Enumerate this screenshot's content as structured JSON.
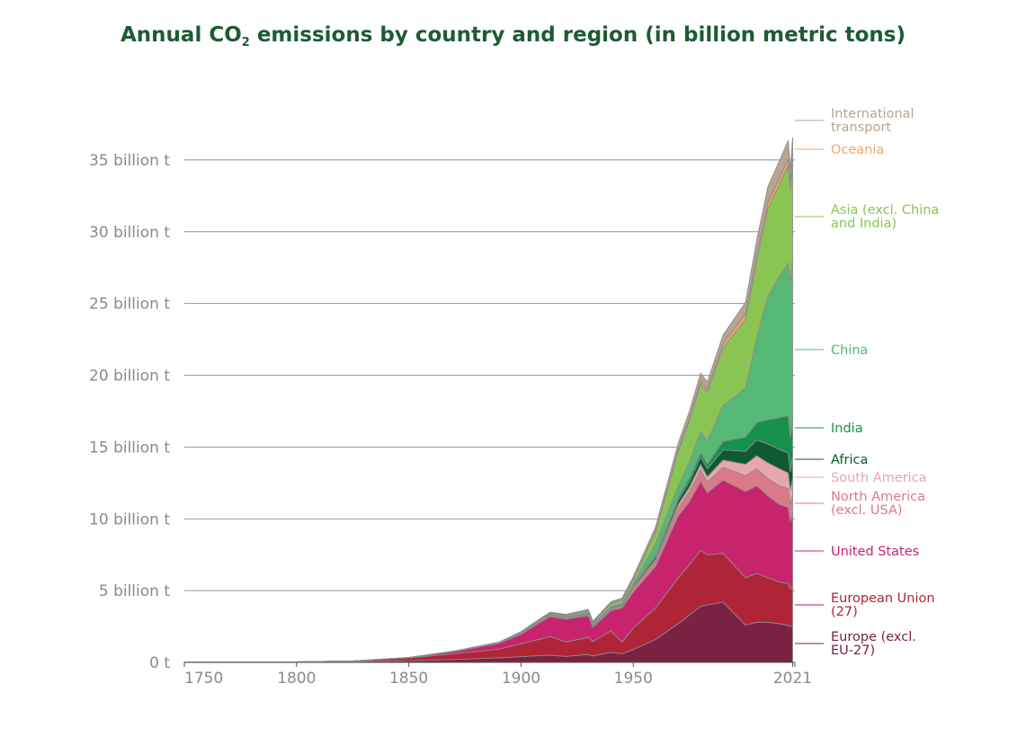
{
  "title": {
    "prefix": "Annual CO",
    "subscript": "2",
    "suffix": " emissions by country and region (in billion metric tons)"
  },
  "colors": {
    "title": "#1e5b34",
    "grid": "#7a7a7a",
    "tick_text": "#8a8a8a",
    "series_outline": "#8c8c8c"
  },
  "chart_data": {
    "type": "area",
    "stacked": true,
    "title": "Annual CO2 emissions by country and region (in billion metric tons)",
    "xlabel": "",
    "ylabel": "",
    "xlim": [
      1750,
      2022
    ],
    "ylim": [
      0,
      38
    ],
    "grid": "horizontal",
    "legend": "right",
    "x_ticks": [
      "1750",
      "1800",
      "1850",
      "1900",
      "1950",
      "2021"
    ],
    "y_ticks": [
      {
        "value": 0,
        "label": "0 t"
      },
      {
        "value": 5,
        "label": "5 billion t"
      },
      {
        "value": 10,
        "label": "10 billion t"
      },
      {
        "value": 15,
        "label": "15 billion t"
      },
      {
        "value": 20,
        "label": "20 billion t"
      },
      {
        "value": 25,
        "label": "25 billion t"
      },
      {
        "value": 30,
        "label": "30 billion t"
      },
      {
        "value": 35,
        "label": "35 billion t"
      }
    ],
    "x": [
      1750,
      1800,
      1825,
      1850,
      1870,
      1890,
      1900,
      1910,
      1913,
      1920,
      1930,
      1932,
      1940,
      1945,
      1950,
      1960,
      1970,
      1975,
      1980,
      1983,
      1990,
      2000,
      2005,
      2010,
      2015,
      2019,
      2020,
      2021
    ],
    "series": [
      {
        "name": "Europe (excl. EU-27)",
        "color": "#7b2143",
        "values": [
          0.01,
          0.03,
          0.06,
          0.12,
          0.2,
          0.32,
          0.4,
          0.48,
          0.5,
          0.42,
          0.55,
          0.45,
          0.7,
          0.6,
          0.9,
          1.6,
          2.7,
          3.3,
          3.9,
          4.0,
          4.2,
          2.6,
          2.8,
          2.8,
          2.7,
          2.6,
          2.5,
          2.6
        ]
      },
      {
        "name": "European Union (27)",
        "color": "#b02437",
        "values": [
          0.0,
          0.01,
          0.04,
          0.2,
          0.4,
          0.6,
          0.9,
          1.2,
          1.3,
          1.0,
          1.2,
          1.0,
          1.5,
          0.8,
          1.5,
          2.2,
          3.2,
          3.5,
          3.9,
          3.5,
          3.4,
          3.3,
          3.4,
          3.1,
          2.9,
          2.9,
          2.6,
          2.8
        ]
      },
      {
        "name": "United States",
        "color": "#c8246e",
        "values": [
          0.0,
          0.0,
          0.0,
          0.02,
          0.15,
          0.4,
          0.66,
          1.25,
          1.4,
          1.6,
          1.5,
          1.0,
          1.4,
          2.4,
          2.5,
          2.9,
          4.3,
          4.4,
          4.8,
          4.3,
          5.1,
          6.0,
          6.1,
          5.7,
          5.4,
          5.3,
          4.7,
          5.0
        ]
      },
      {
        "name": "North America (excl. USA)",
        "color": "#da7a88",
        "values": [
          0.0,
          0.0,
          0.0,
          0.0,
          0.01,
          0.02,
          0.04,
          0.06,
          0.07,
          0.07,
          0.08,
          0.06,
          0.09,
          0.1,
          0.25,
          0.35,
          0.55,
          0.7,
          0.8,
          0.75,
          0.9,
          1.1,
          1.2,
          1.2,
          1.3,
          1.3,
          1.2,
          1.3
        ]
      },
      {
        "name": "South America",
        "color": "#e7a7aa",
        "values": [
          0.0,
          0.0,
          0.0,
          0.0,
          0.0,
          0.0,
          0.01,
          0.02,
          0.02,
          0.02,
          0.03,
          0.03,
          0.04,
          0.05,
          0.07,
          0.14,
          0.24,
          0.3,
          0.4,
          0.38,
          0.5,
          0.8,
          0.9,
          1.1,
          1.2,
          1.1,
          1.0,
          1.1
        ]
      },
      {
        "name": "Africa",
        "color": "#0f5a2e",
        "values": [
          0.0,
          0.0,
          0.0,
          0.0,
          0.0,
          0.01,
          0.02,
          0.03,
          0.03,
          0.03,
          0.04,
          0.04,
          0.05,
          0.06,
          0.1,
          0.18,
          0.3,
          0.4,
          0.5,
          0.55,
          0.7,
          0.9,
          1.1,
          1.3,
          1.35,
          1.4,
          1.3,
          1.4
        ]
      },
      {
        "name": "India",
        "color": "#17924c",
        "values": [
          0.0,
          0.0,
          0.0,
          0.0,
          0.01,
          0.02,
          0.03,
          0.04,
          0.04,
          0.05,
          0.06,
          0.06,
          0.07,
          0.08,
          0.08,
          0.12,
          0.2,
          0.25,
          0.3,
          0.35,
          0.6,
          1.0,
          1.2,
          1.7,
          2.2,
          2.6,
          2.4,
          2.7
        ]
      },
      {
        "name": "China",
        "color": "#56b875",
        "values": [
          0.0,
          0.0,
          0.0,
          0.0,
          0.0,
          0.0,
          0.0,
          0.01,
          0.01,
          0.01,
          0.03,
          0.03,
          0.04,
          0.05,
          0.08,
          0.8,
          0.8,
          1.1,
          1.5,
          1.6,
          2.5,
          3.4,
          5.9,
          8.6,
          9.8,
          10.6,
          10.8,
          11.3
        ]
      },
      {
        "name": "Asia (excl. China and India)",
        "color": "#8ac554",
        "values": [
          0.0,
          0.0,
          0.0,
          0.0,
          0.01,
          0.02,
          0.04,
          0.06,
          0.07,
          0.08,
          0.12,
          0.12,
          0.2,
          0.2,
          0.3,
          0.8,
          2.4,
          2.9,
          3.3,
          3.4,
          4.0,
          4.8,
          5.4,
          6.1,
          6.4,
          6.8,
          6.5,
          6.8
        ]
      },
      {
        "name": "Oceania",
        "color": "#f0a668",
        "values": [
          0.0,
          0.0,
          0.0,
          0.0,
          0.0,
          0.01,
          0.01,
          0.01,
          0.01,
          0.01,
          0.02,
          0.02,
          0.03,
          0.03,
          0.04,
          0.07,
          0.12,
          0.15,
          0.2,
          0.2,
          0.3,
          0.38,
          0.42,
          0.44,
          0.45,
          0.45,
          0.43,
          0.44
        ]
      },
      {
        "name": "International transport",
        "color": "#b8a48f",
        "values": [
          0.0,
          0.0,
          0.0,
          0.0,
          0.0,
          0.0,
          0.03,
          0.05,
          0.05,
          0.05,
          0.06,
          0.06,
          0.1,
          0.12,
          0.15,
          0.3,
          0.45,
          0.5,
          0.55,
          0.5,
          0.6,
          0.8,
          1.0,
          1.1,
          1.2,
          1.3,
          0.95,
          1.1
        ]
      }
    ]
  },
  "labels": [
    {
      "series": "International transport",
      "lines": [
        "International",
        "transport"
      ]
    },
    {
      "series": "Oceania",
      "lines": [
        "Oceania"
      ]
    },
    {
      "series": "Asia (excl. China and India)",
      "lines": [
        "Asia (excl. China",
        "and India)"
      ]
    },
    {
      "series": "China",
      "lines": [
        "China"
      ]
    },
    {
      "series": "India",
      "lines": [
        "India"
      ]
    },
    {
      "series": "Africa",
      "lines": [
        "Africa"
      ]
    },
    {
      "series": "South America",
      "lines": [
        "South America"
      ]
    },
    {
      "series": "North America (excl. USA)",
      "lines": [
        "North America",
        "(excl. USA)"
      ]
    },
    {
      "series": "United States",
      "lines": [
        "United States"
      ]
    },
    {
      "series": "European Union (27)",
      "lines": [
        "European Union",
        "(27)"
      ]
    },
    {
      "series": "Europe (excl. EU-27)",
      "lines": [
        "Europe (excl.",
        "EU-27)"
      ]
    }
  ]
}
